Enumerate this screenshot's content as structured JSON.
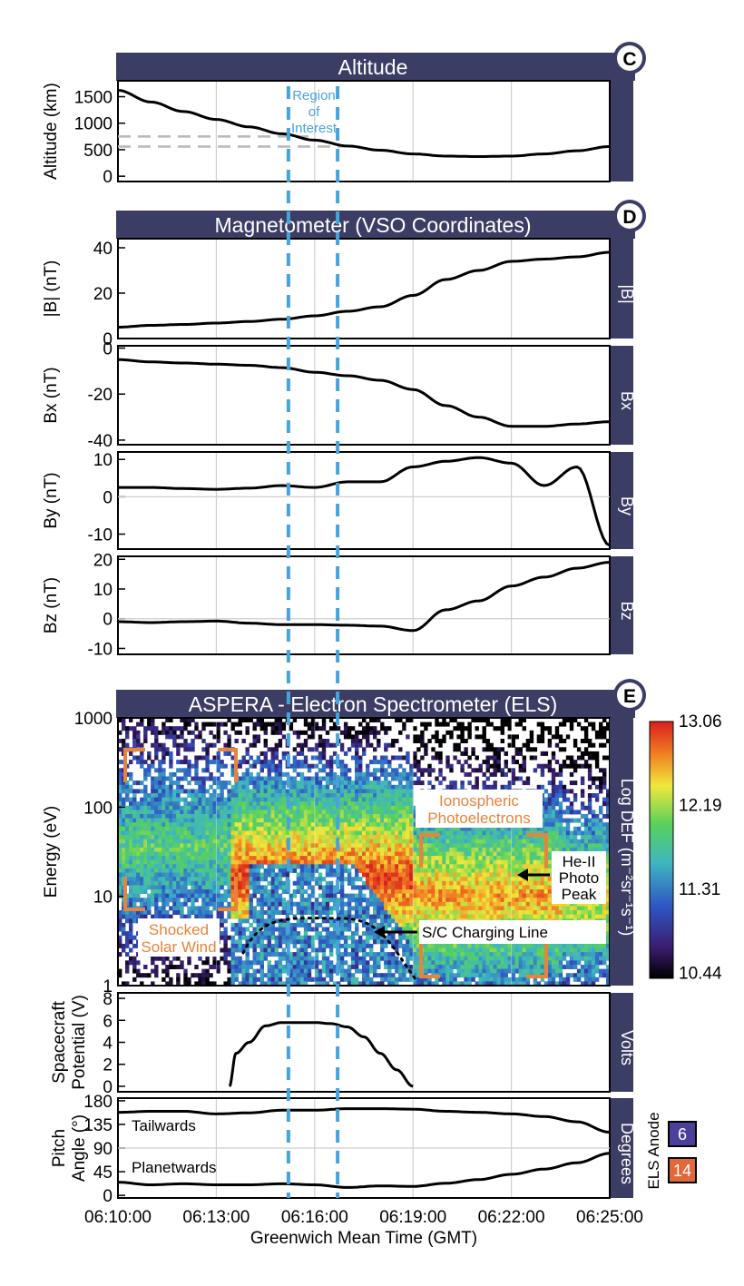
{
  "colors": {
    "header": "#3c3d65",
    "roi": "#4aa3d8",
    "tailwards": "#4a3f9a",
    "planetwards": "#e0683a",
    "annotation_orange": "#e8833a"
  },
  "x_axis": {
    "label": "Greenwich Mean Time (GMT)",
    "ticks": [
      "06:10:00",
      "06:13:00",
      "06:16:00",
      "06:19:00",
      "06:22:00",
      "06:25:00"
    ],
    "range_minutes": [
      0,
      15
    ]
  },
  "region_of_interest": {
    "label_lines": [
      "Region",
      "of",
      "Interest"
    ],
    "start_min": 5.2,
    "end_min": 6.7
  },
  "panels": {
    "altitude": {
      "badge": "C",
      "title": "Altitude",
      "ylabel": "Altitude (km)",
      "yticks": [
        "1500",
        "1000",
        "500",
        "0"
      ]
    },
    "magnetometer": {
      "badge": "D",
      "title": "Magnetometer (VSO Coordinates)",
      "B": {
        "ylabel": "|B| (nT)",
        "side": "|B|",
        "yticks": [
          "40",
          "20",
          "0"
        ]
      },
      "Bx": {
        "ylabel": "Bx (nT)",
        "side": "Bx",
        "yticks": [
          "0",
          "-20",
          "-40"
        ]
      },
      "By": {
        "ylabel": "By (nT)",
        "side": "By",
        "yticks": [
          "10",
          "0",
          "-10"
        ]
      },
      "Bz": {
        "ylabel": "Bz (nT)",
        "side": "Bz",
        "yticks": [
          "20",
          "10",
          "0",
          "-10"
        ]
      }
    },
    "els": {
      "badge": "E",
      "title": "ASPERA - Electron Spectrometer (ELS)",
      "ylabel": "Energy (eV)",
      "yticks": [
        "1000",
        "100",
        "10",
        "1"
      ],
      "colorbar": {
        "label": "Log DEF (m⁻²sr⁻¹s⁻¹)",
        "ticks": [
          "13.06",
          "12.19",
          "11.31",
          "10.44"
        ]
      },
      "annotations": {
        "shocked_1": "Shocked",
        "shocked_2": "Solar Wind",
        "iono_1": "Ionospheric",
        "iono_2": "Photoelectrons",
        "he_1": "He-II",
        "he_2": "Photo",
        "he_3": "Peak",
        "charging": "S/C Charging Line"
      }
    },
    "potential": {
      "ylabel_1": "Spacecraft",
      "ylabel_2": "Potential (V)",
      "side": "Volts",
      "yticks": [
        "8",
        "6",
        "4",
        "2",
        "0"
      ]
    },
    "pitch": {
      "ylabel_1": "Pitch",
      "ylabel_2": "Angle (°)",
      "side": "Degrees",
      "yticks": [
        "180",
        "135",
        "90",
        "45",
        "0"
      ],
      "tailwards": "Tailwards",
      "planetwards": "Planetwards",
      "anode_label": "ELS Anode",
      "anode_values": [
        "6",
        "14"
      ]
    }
  },
  "chart_data": [
    {
      "type": "line",
      "title": "Altitude",
      "ylabel": "Altitude (km)",
      "xlabel": "Greenwich Mean Time (GMT)",
      "ylim": [
        -100,
        1800
      ],
      "x": [
        0,
        1,
        2,
        3,
        4,
        5,
        6,
        7,
        8,
        9,
        10,
        11,
        12,
        13,
        14,
        15
      ],
      "series": [
        {
          "values": [
            1620,
            1400,
            1220,
            1070,
            930,
            800,
            680,
            570,
            490,
            420,
            380,
            370,
            380,
            420,
            480,
            560
          ]
        }
      ]
    },
    {
      "type": "line",
      "title": "Magnetometer (VSO Coordinates)",
      "ylabel": "|B| (nT)",
      "ylim": [
        0,
        44
      ],
      "x": [
        0,
        1,
        2,
        3,
        4,
        5,
        6,
        7,
        8,
        9,
        10,
        11,
        12,
        13,
        14,
        15
      ],
      "series": [
        {
          "values": [
            5,
            5.8,
            6.2,
            6.8,
            7.5,
            8.5,
            10,
            12,
            14,
            19,
            26,
            30,
            34,
            35,
            36,
            38
          ]
        }
      ]
    },
    {
      "type": "line",
      "ylabel": "Bx (nT)",
      "ylim": [
        -42,
        1
      ],
      "x": [
        0,
        1,
        2,
        3,
        4,
        5,
        6,
        7,
        8,
        9,
        10,
        11,
        12,
        13,
        14,
        15
      ],
      "series": [
        {
          "values": [
            -5,
            -6,
            -6.5,
            -7,
            -7.5,
            -8.5,
            -10.5,
            -12,
            -14,
            -18,
            -25,
            -30,
            -34,
            -34,
            -33,
            -32
          ]
        }
      ]
    },
    {
      "type": "line",
      "ylabel": "By (nT)",
      "ylim": [
        -14,
        12
      ],
      "x": [
        0,
        1,
        2,
        3,
        4,
        5,
        6,
        7,
        8,
        9,
        10,
        11,
        12,
        13,
        14,
        15
      ],
      "series": [
        {
          "values": [
            2.5,
            2.5,
            2.2,
            2,
            2.3,
            3,
            2.5,
            4,
            4,
            8,
            9.5,
            10.5,
            9,
            3,
            8,
            -13
          ]
        }
      ]
    },
    {
      "type": "line",
      "ylabel": "Bz (nT)",
      "ylim": [
        -12,
        21
      ],
      "x": [
        0,
        1,
        2,
        3,
        4,
        5,
        6,
        7,
        8,
        9,
        10,
        11,
        12,
        13,
        14,
        15
      ],
      "series": [
        {
          "values": [
            -1,
            -1.3,
            -1,
            -0.8,
            -1.5,
            -2,
            -2,
            -2.2,
            -2.5,
            -4,
            3,
            6,
            11,
            14,
            17,
            19
          ]
        }
      ]
    },
    {
      "type": "heatmap",
      "title": "ASPERA - Electron Spectrometer (ELS)",
      "ylabel": "Energy (eV)",
      "y_scale": "log",
      "ylim": [
        1,
        1000
      ],
      "colorbar_range": [
        10.44,
        13.06
      ],
      "colorbar_label": "Log DEF (m⁻²sr⁻¹s⁻¹)"
    },
    {
      "type": "line",
      "ylabel": "Spacecraft Potential (V)",
      "ylim": [
        -0.5,
        8.5
      ],
      "x": [
        3.4,
        3.6,
        4,
        4.5,
        5,
        5.5,
        6,
        6.5,
        7,
        7.5,
        8,
        8.5,
        9
      ],
      "series": [
        {
          "values": [
            0,
            3,
            4,
            5.5,
            5.8,
            5.8,
            5.8,
            5.7,
            5.4,
            4.5,
            3,
            1.5,
            0
          ]
        }
      ]
    },
    {
      "type": "line",
      "ylabel": "Pitch Angle (°)",
      "ylim": [
        -5,
        185
      ],
      "x": [
        0,
        1,
        2,
        3,
        4,
        5,
        6,
        7,
        8,
        9,
        10,
        11,
        12,
        13,
        14,
        15
      ],
      "series": [
        {
          "name": "Tailwards",
          "values": [
            158,
            160,
            160,
            155,
            157,
            162,
            162,
            165,
            165,
            164,
            160,
            158,
            155,
            150,
            140,
            120
          ]
        },
        {
          "name": "Planetwards",
          "values": [
            25,
            20,
            22,
            20,
            20,
            22,
            20,
            15,
            18,
            17,
            23,
            30,
            40,
            50,
            62,
            80
          ]
        }
      ]
    }
  ]
}
